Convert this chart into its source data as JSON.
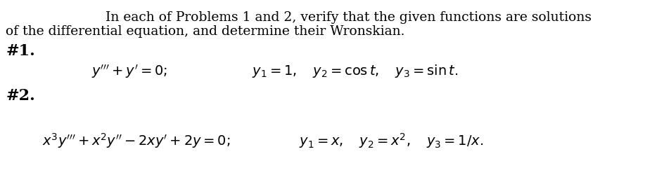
{
  "background_color": "#ffffff",
  "intro_line1": "In each of Problems 1 and 2, verify that the given functions are solutions",
  "intro_line2": "of the differential equation, and determine their Wronskian.",
  "label1": "#1.",
  "label2": "#2.",
  "font_size_intro": 13.5,
  "font_size_label": 16,
  "font_size_eq": 14,
  "text_color": "#000000"
}
